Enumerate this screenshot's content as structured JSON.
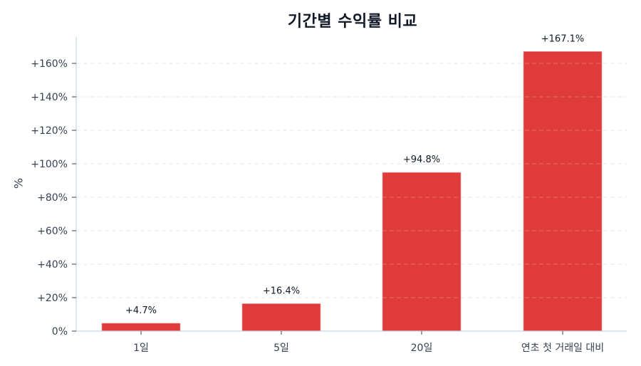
{
  "chart_data": {
    "type": "bar",
    "title": "기간별 수익률 비교",
    "xlabel": "",
    "ylabel": "%",
    "categories": [
      "1일",
      "5일",
      "20일",
      "연초 첫 거래일 대비"
    ],
    "values": [
      4.7,
      16.4,
      94.8,
      167.1
    ],
    "value_labels": [
      "+4.7%",
      "+16.4%",
      "+94.8%",
      "+167.1%"
    ],
    "ylim": [
      0,
      175
    ],
    "yticks": [
      0,
      20,
      40,
      60,
      80,
      100,
      120,
      140,
      160
    ],
    "ytick_labels": [
      "0%",
      "+20%",
      "+40%",
      "+60%",
      "+80%",
      "+100%",
      "+120%",
      "+140%",
      "+160%"
    ],
    "grid": "horizontal dashed",
    "legend": null,
    "bar_color": "#e03b3b"
  },
  "colors": {
    "bar": "#e03b3b",
    "grid": "#e5e7eb",
    "axis": "#cbd5e1",
    "text": "#374151",
    "title": "#111827"
  }
}
